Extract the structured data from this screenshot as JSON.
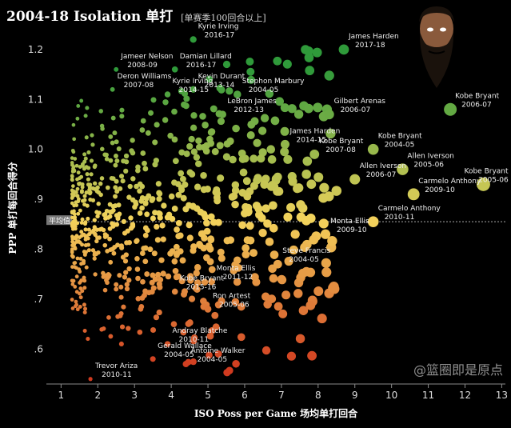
{
  "header": {
    "title": "2004-18 Isolation 单打",
    "subtitle": "[单赛季100回合以上]"
  },
  "watermark": "@篮圈即是原点",
  "chart_data": {
    "type": "scatter",
    "xlabel": "ISO Poss per Game 场均单打回合",
    "ylabel": "PPP 单打每回合得分",
    "xlim": [
      0.6,
      13.1
    ],
    "ylim": [
      0.53,
      1.235
    ],
    "xticks": [
      1,
      2,
      3,
      4,
      5,
      6,
      7,
      8,
      9,
      10,
      11,
      12,
      13
    ],
    "yticks": [
      0.6,
      0.7,
      0.8,
      0.9,
      1.0,
      1.1,
      1.2
    ],
    "ytick_labels": [
      ".6",
      ".7",
      ".8",
      ".9",
      "1.0",
      "1.1",
      "1.2"
    ],
    "grid": false,
    "reference_line": {
      "y": 0.855,
      "label": "平均值"
    },
    "color_scale": {
      "low": "#d03a1f",
      "mid": "#f3d35c",
      "high": "#2f9a3a"
    },
    "labeled_points": [
      {
        "name": "Kyrie Irving",
        "season": "2016-17",
        "x": 4.6,
        "y": 1.22
      },
      {
        "name": "James Harden",
        "season": "2017-18",
        "x": 8.7,
        "y": 1.2
      },
      {
        "name": "Jameer Nelson",
        "season": "2008-09",
        "x": 2.5,
        "y": 1.16
      },
      {
        "name": "Damian Lillard",
        "season": "2016-17",
        "x": 4.1,
        "y": 1.16
      },
      {
        "name": "Kevin Durant",
        "season": "2013-14",
        "x": 4.6,
        "y": 1.12
      },
      {
        "name": "Deron Williams",
        "season": "2007-08",
        "x": 2.4,
        "y": 1.12
      },
      {
        "name": "Kyrie Irving",
        "season": "2014-15",
        "x": 3.9,
        "y": 1.11
      },
      {
        "name": "Stephon Marbury",
        "season": "2004-05",
        "x": 5.8,
        "y": 1.11
      },
      {
        "name": "Gilbert Arenas",
        "season": "2006-07",
        "x": 8.3,
        "y": 1.07
      },
      {
        "name": "Kobe Bryant",
        "season": "2006-07",
        "x": 11.6,
        "y": 1.08
      },
      {
        "name": "LeBron James",
        "season": "2012-13",
        "x": 5.4,
        "y": 1.07
      },
      {
        "name": "James Harden",
        "season": "2014-15",
        "x": 7.1,
        "y": 1.01
      },
      {
        "name": "Kobe Bryant",
        "season": "2007-08",
        "x": 7.9,
        "y": 0.99
      },
      {
        "name": "Kobe Bryant",
        "season": "2004-05",
        "x": 9.5,
        "y": 1.0
      },
      {
        "name": "Allen Iverson",
        "season": "2005-06",
        "x": 10.3,
        "y": 0.96
      },
      {
        "name": "Allen Iverson",
        "season": "2006-07",
        "x": 9.0,
        "y": 0.94
      },
      {
        "name": "Kobe Bryant",
        "season": "2005-06",
        "x": 12.5,
        "y": 0.93
      },
      {
        "name": "Carmelo Anthony",
        "season": "2009-10",
        "x": 10.6,
        "y": 0.91
      },
      {
        "name": "Carmelo Anthony",
        "season": "2010-11",
        "x": 9.5,
        "y": 0.855
      },
      {
        "name": "Monta Ellis",
        "season": "2009-10",
        "x": 8.2,
        "y": 0.83
      },
      {
        "name": "Steve Francis",
        "season": "2004-05",
        "x": 6.9,
        "y": 0.77
      },
      {
        "name": "Monta Ellis",
        "season": "2011-12",
        "x": 5.1,
        "y": 0.735
      },
      {
        "name": "Kobe Bryant",
        "season": "2015-16",
        "x": 4.1,
        "y": 0.715
      },
      {
        "name": "Ron Artest",
        "season": "2005-06",
        "x": 5.0,
        "y": 0.68
      },
      {
        "name": "Andray Blatche",
        "season": "2010-11",
        "x": 3.9,
        "y": 0.61
      },
      {
        "name": "Gerald Wallace",
        "season": "2004-05",
        "x": 3.5,
        "y": 0.58
      },
      {
        "name": "Antoine Walker",
        "season": "2004-05",
        "x": 4.4,
        "y": 0.57
      },
      {
        "name": "Trevor Ariza",
        "season": "2010-11",
        "x": 1.8,
        "y": 0.54
      }
    ]
  }
}
